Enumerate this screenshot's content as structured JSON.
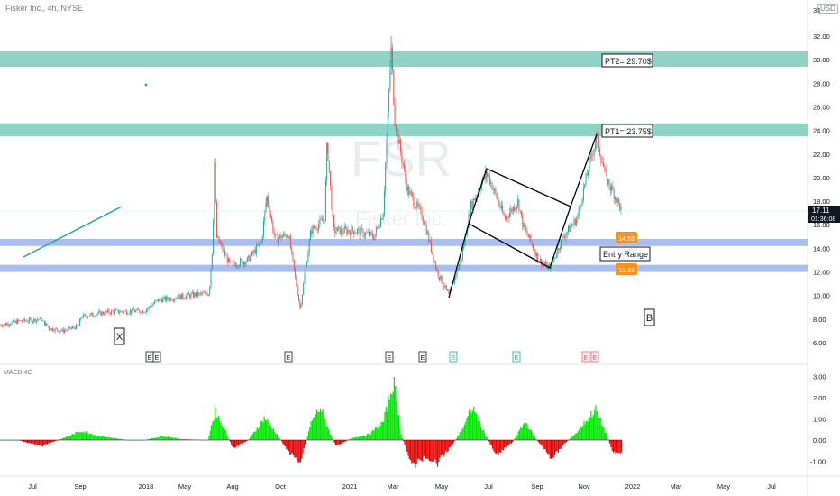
{
  "header": {
    "title": "Fisker Inc., 4h, NYSE",
    "currency": "USD"
  },
  "watermark": {
    "ticker": "FSR",
    "interval": "4h",
    "name": "Fisker Inc."
  },
  "price_axis": {
    "labels": [
      "34",
      "32.00",
      "30.00",
      "28.00",
      "26.00",
      "24.00",
      "22.00",
      "20.00",
      "18.00",
      "16.00",
      "14.00",
      "12.00",
      "10.00",
      "8.00",
      "6.00"
    ]
  },
  "macd_axis": {
    "labels": [
      "3.00",
      "2.00",
      "1.00",
      "0.00",
      "-1.00"
    ]
  },
  "time_axis": {
    "labels": [
      "Jul",
      "Sep",
      "2018",
      "May",
      "Aug",
      "Oct",
      "2021",
      "Mar",
      "May",
      "Jul",
      "Sep",
      "Nov",
      "2022",
      "Mar",
      "May",
      "Jul"
    ]
  },
  "last_price": {
    "value": "17.11",
    "countdown": "01:36:08"
  },
  "annotations": {
    "pt1": "PT1= 23.75$",
    "pt2": "PT2= 29.70$",
    "entry": "Entry Range",
    "x_marker": "X",
    "b_marker": "B"
  },
  "level_badges": {
    "upper": "14.53",
    "lower": "12.33"
  },
  "earnings_markers": [
    "E",
    "E",
    "E",
    "E",
    "E",
    "E",
    "E",
    "E",
    "E",
    "E"
  ],
  "macd_label": "MACD 4C",
  "colors": {
    "up": "#26a69a",
    "down": "#ef5350",
    "zone_green": "#8fd3c7",
    "zone_blue": "#a8bdf0",
    "macd_up": "#00e600",
    "macd_down": "#e60000",
    "badge": "#f7931a"
  },
  "chart_data": {
    "type": "candlestick",
    "symbol": "FSR",
    "interval": "4h",
    "ylim": [
      6,
      34
    ],
    "zones": [
      {
        "label": "PT2= 29.70$",
        "from": 29.4,
        "to": 30.7
      },
      {
        "label": "PT1= 23.75$",
        "from": 23.5,
        "to": 24.6
      },
      {
        "label": "14.53",
        "from": 14.2,
        "to": 14.8
      },
      {
        "label": "12.33",
        "from": 12.0,
        "to": 12.6
      }
    ],
    "price_path": [
      [
        0,
        7.5
      ],
      [
        20,
        7.8
      ],
      [
        45,
        8.0
      ],
      [
        55,
        7.2
      ],
      [
        70,
        7.0
      ],
      [
        87,
        7.4
      ],
      [
        90,
        8.2
      ],
      [
        120,
        8.6
      ],
      [
        160,
        8.7
      ],
      [
        175,
        9.6
      ],
      [
        200,
        9.9
      ],
      [
        232,
        10.2
      ],
      [
        236,
        14.5
      ],
      [
        238,
        21.6
      ],
      [
        240,
        15.0
      ],
      [
        255,
        12.6
      ],
      [
        275,
        13.0
      ],
      [
        290,
        14.5
      ],
      [
        296,
        18.5
      ],
      [
        305,
        14.8
      ],
      [
        320,
        15.2
      ],
      [
        333,
        8.9
      ],
      [
        345,
        15.5
      ],
      [
        360,
        16.5
      ],
      [
        363,
        23.0
      ],
      [
        370,
        15.5
      ],
      [
        395,
        15.5
      ],
      [
        415,
        15.0
      ],
      [
        425,
        17.0
      ],
      [
        434,
        31.0
      ],
      [
        438,
        25.0
      ],
      [
        452,
        19.0
      ],
      [
        470,
        16.5
      ],
      [
        485,
        12.0
      ],
      [
        498,
        10.0
      ],
      [
        512,
        13.2
      ],
      [
        522,
        17.5
      ],
      [
        540,
        20.5
      ],
      [
        560,
        16.5
      ],
      [
        575,
        18.0
      ],
      [
        580,
        16.0
      ],
      [
        598,
        13.0
      ],
      [
        610,
        12.3
      ],
      [
        625,
        15.0
      ],
      [
        640,
        16.5
      ],
      [
        655,
        21.5
      ],
      [
        662,
        23.5
      ],
      [
        672,
        20.0
      ],
      [
        682,
        18.5
      ],
      [
        690,
        17.11
      ]
    ],
    "macd_path": [
      [
        0,
        0.0
      ],
      [
        20,
        0.0
      ],
      [
        45,
        -0.3
      ],
      [
        70,
        0.1
      ],
      [
        90,
        0.45
      ],
      [
        110,
        0.2
      ],
      [
        140,
        0.0
      ],
      [
        160,
        0.0
      ],
      [
        180,
        0.2
      ],
      [
        200,
        0.05
      ],
      [
        230,
        0.0
      ],
      [
        238,
        1.4
      ],
      [
        248,
        0.6
      ],
      [
        258,
        -0.4
      ],
      [
        275,
        0.0
      ],
      [
        293,
        1.1
      ],
      [
        305,
        0.4
      ],
      [
        320,
        -0.6
      ],
      [
        333,
        -1.0
      ],
      [
        345,
        0.9
      ],
      [
        355,
        1.6
      ],
      [
        365,
        0.4
      ],
      [
        372,
        -0.3
      ],
      [
        390,
        0.1
      ],
      [
        410,
        0.3
      ],
      [
        425,
        0.9
      ],
      [
        436,
        2.9
      ],
      [
        445,
        0.2
      ],
      [
        458,
        -1.3
      ],
      [
        470,
        -0.8
      ],
      [
        485,
        -1.1
      ],
      [
        500,
        -0.3
      ],
      [
        512,
        0.5
      ],
      [
        524,
        1.6
      ],
      [
        535,
        0.5
      ],
      [
        550,
        -0.7
      ],
      [
        568,
        -0.1
      ],
      [
        582,
        0.9
      ],
      [
        595,
        0.0
      ],
      [
        612,
        -0.9
      ],
      [
        625,
        -0.2
      ],
      [
        640,
        0.4
      ],
      [
        660,
        1.5
      ],
      [
        672,
        0.3
      ],
      [
        680,
        -0.6
      ],
      [
        690,
        -0.6
      ]
    ],
    "lines": [
      {
        "type": "trend",
        "points": [
          [
            520,
            14.5
          ],
          [
            540,
            20.5
          ],
          [
            632,
            18.0
          ],
          [
            662,
            23.5
          ]
        ]
      },
      {
        "type": "trend",
        "points": [
          [
            498,
            10.0
          ],
          [
            520,
            14.5
          ],
          [
            610,
            12.3
          ],
          [
            632,
            18.0
          ]
        ]
      }
    ],
    "macd_ylim": [
      -1.5,
      3.5
    ]
  }
}
